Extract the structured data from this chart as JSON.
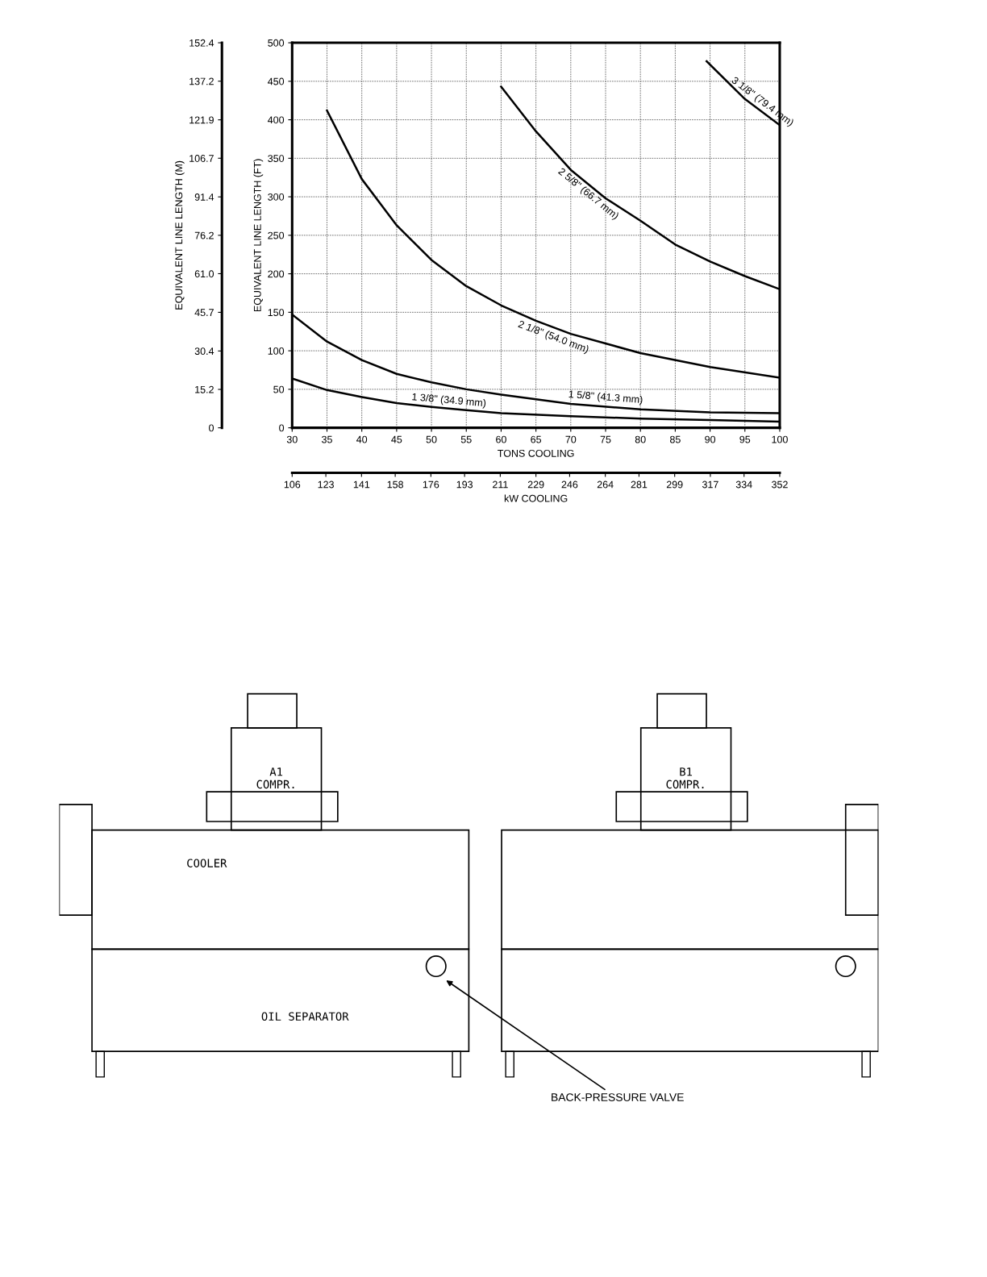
{
  "chart_data": {
    "type": "line",
    "xlabel": "TONS COOLING",
    "ylabel": "EQUIVALENT LINE LENGTH (FT)",
    "y2label": "EQUIVALENT LINE LENGTH (M)",
    "x2label": "kW COOLING",
    "xlim": [
      30,
      100
    ],
    "xticks": [
      30,
      35,
      40,
      45,
      50,
      55,
      60,
      65,
      70,
      75,
      80,
      85,
      90,
      95,
      100
    ],
    "ylim": [
      0,
      500
    ],
    "yticks": [
      0,
      50,
      100,
      150,
      200,
      250,
      300,
      350,
      400,
      450,
      500
    ],
    "y2lim": [
      0,
      152.4
    ],
    "y2ticks": [
      0,
      15.2,
      30.4,
      45.7,
      {
        "value": 61.0,
        "label": "61.0"
      },
      76.2,
      91.4,
      106.7,
      121.9,
      137.2,
      152.4
    ],
    "x2lim": [
      106,
      352
    ],
    "x2ticks": [
      106,
      123,
      141,
      158,
      176,
      193,
      211,
      229,
      246,
      264,
      281,
      299,
      317,
      334,
      352
    ],
    "grid": true,
    "legend": false,
    "marker": "none",
    "line_style": "solid",
    "series": [
      {
        "name": "1 3/8\" (34.9 mm)",
        "color": "#000000",
        "x": [
          30,
          35,
          40,
          45,
          50,
          55,
          60,
          70,
          80,
          90,
          100
        ],
        "values": [
          64,
          49,
          40,
          32,
          27,
          23,
          19,
          15,
          12,
          10,
          8
        ]
      },
      {
        "name": "1 5/8\" (41.3 mm)",
        "color": "#000000",
        "x": [
          30,
          35,
          40,
          45,
          50,
          55,
          60,
          70,
          80,
          90,
          100
        ],
        "values": [
          147,
          112,
          88,
          70,
          59,
          50,
          43,
          31,
          24,
          20,
          19
        ]
      },
      {
        "name": "2 1/8\" (54.0 mm)",
        "color": "#000000",
        "x": [
          35,
          40,
          45,
          50,
          55,
          60,
          65,
          70,
          80,
          90,
          100
        ],
        "values": [
          412,
          323,
          263,
          218,
          184,
          159,
          139,
          122,
          97,
          79,
          65
        ]
      },
      {
        "name": "2 5/8\" (66.7 mm)",
        "color": "#000000",
        "x": [
          60,
          65,
          70,
          75,
          80,
          85,
          90,
          95,
          100
        ],
        "values": [
          443,
          385,
          335,
          298,
          269,
          238,
          216,
          197,
          180
        ]
      },
      {
        "name": "3 1/8\" (79.4 mm)",
        "color": "#000000",
        "x": [
          89.5,
          95,
          100
        ],
        "values": [
          476,
          427,
          393
        ]
      }
    ],
    "annotations": [
      "A1\nCOMPR.",
      "B1\nCOMPR.",
      "COOLER",
      "OIL SEPARATOR",
      "BACK-PRESSURE VALVE"
    ]
  }
}
